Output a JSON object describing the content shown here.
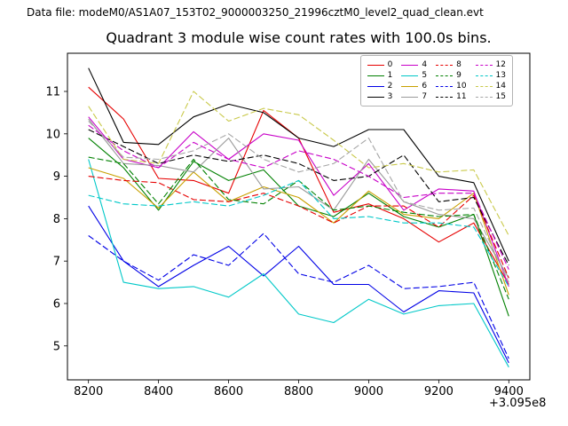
{
  "figure": {
    "data_file_label": "Data file: modeM0/AS1A07_153T02_9000003250_21996cztM0_level2_quad_clean.evt",
    "title": "Quadrant 3 module wise count rates with 100.0s bins."
  },
  "chart_data": {
    "type": "line",
    "title": "Quadrant 3 module wise count rates with 100.0s bins.",
    "xlabel": "",
    "ylabel": "",
    "x_offset_label": "+3.095e8",
    "grid": false,
    "legend_position": "upper right",
    "xlim": [
      8140,
      9460
    ],
    "ylim": [
      4.2,
      11.9
    ],
    "x_ticks": [
      8200,
      8400,
      8600,
      8800,
      9000,
      9200,
      9400
    ],
    "y_ticks": [
      5,
      6,
      7,
      8,
      9,
      10,
      11
    ],
    "x": [
      8200,
      8300,
      8400,
      8500,
      8600,
      8700,
      8800,
      8900,
      9000,
      9100,
      9200,
      9300,
      9400
    ],
    "series": [
      {
        "name": "0",
        "color": "#e60000",
        "dash": "solid",
        "values": [
          11.1,
          10.35,
          8.95,
          8.9,
          8.6,
          10.55,
          9.9,
          8.15,
          8.35,
          8.0,
          7.45,
          7.9,
          6.45
        ]
      },
      {
        "name": "1",
        "color": "#008000",
        "dash": "solid",
        "values": [
          9.9,
          9.2,
          8.2,
          9.35,
          8.9,
          9.15,
          8.3,
          8.05,
          8.6,
          8.05,
          7.8,
          8.1,
          5.7
        ]
      },
      {
        "name": "2",
        "color": "#0000e6",
        "dash": "solid",
        "values": [
          8.3,
          7.0,
          6.4,
          6.9,
          7.35,
          6.65,
          7.35,
          6.45,
          6.45,
          5.8,
          6.3,
          6.25,
          4.6
        ]
      },
      {
        "name": "3",
        "color": "#000000",
        "dash": "solid",
        "values": [
          11.55,
          9.8,
          9.75,
          10.4,
          10.7,
          10.5,
          9.9,
          9.7,
          10.1,
          10.1,
          9.0,
          8.85,
          7.0
        ]
      },
      {
        "name": "4",
        "color": "#c800c8",
        "dash": "solid",
        "values": [
          10.4,
          9.4,
          9.2,
          10.05,
          9.4,
          10.0,
          9.85,
          8.55,
          9.3,
          8.2,
          8.7,
          8.65,
          6.4
        ]
      },
      {
        "name": "5",
        "color": "#00c8c8",
        "dash": "solid",
        "values": [
          9.4,
          6.5,
          6.35,
          6.4,
          6.15,
          6.7,
          5.75,
          5.55,
          6.1,
          5.75,
          5.95,
          6.0,
          4.5
        ]
      },
      {
        "name": "6",
        "color": "#c8a000",
        "dash": "solid",
        "values": [
          9.2,
          8.95,
          8.25,
          9.1,
          8.4,
          8.75,
          8.5,
          7.9,
          8.65,
          8.1,
          8.0,
          8.6,
          6.2
        ]
      },
      {
        "name": "7",
        "color": "#999999",
        "dash": "solid",
        "values": [
          10.35,
          9.3,
          9.25,
          9.1,
          9.9,
          8.7,
          8.75,
          8.2,
          9.4,
          8.4,
          8.1,
          8.0,
          6.6
        ]
      },
      {
        "name": "8",
        "color": "#e60000",
        "dash": "dashed",
        "values": [
          9.0,
          8.9,
          8.85,
          8.45,
          8.4,
          8.6,
          8.3,
          7.9,
          8.3,
          8.3,
          7.8,
          8.55,
          6.6
        ]
      },
      {
        "name": "9",
        "color": "#008000",
        "dash": "dashed",
        "values": [
          9.45,
          9.3,
          8.35,
          9.4,
          8.45,
          8.35,
          8.9,
          8.2,
          8.3,
          8.15,
          8.05,
          8.1,
          6.1
        ]
      },
      {
        "name": "10",
        "color": "#0000e6",
        "dash": "dashed",
        "values": [
          7.6,
          7.0,
          6.55,
          7.15,
          6.9,
          7.65,
          6.7,
          6.5,
          6.9,
          6.35,
          6.4,
          6.5,
          4.7
        ]
      },
      {
        "name": "11",
        "color": "#000000",
        "dash": "dashed",
        "values": [
          10.1,
          9.7,
          9.3,
          9.5,
          9.35,
          9.5,
          9.3,
          8.9,
          9.0,
          9.5,
          8.4,
          8.5,
          6.9
        ]
      },
      {
        "name": "12",
        "color": "#c800c8",
        "dash": "dashed",
        "values": [
          10.2,
          9.6,
          9.2,
          9.8,
          9.4,
          9.2,
          9.6,
          9.4,
          9.0,
          8.5,
          8.6,
          8.6,
          6.8
        ]
      },
      {
        "name": "13",
        "color": "#00c8c8",
        "dash": "dashed",
        "values": [
          8.55,
          8.35,
          8.3,
          8.4,
          8.3,
          8.55,
          8.9,
          8.0,
          8.05,
          7.9,
          7.9,
          7.8,
          6.4
        ]
      },
      {
        "name": "14",
        "color": "#c9c94a",
        "dash": "dashed",
        "values": [
          10.65,
          9.4,
          9.3,
          11.0,
          10.3,
          10.6,
          10.45,
          9.85,
          9.2,
          9.3,
          9.1,
          9.15,
          7.6
        ]
      },
      {
        "name": "15",
        "color": "#a6a6a6",
        "dash": "dashed",
        "values": [
          10.3,
          9.45,
          9.4,
          9.6,
          10.0,
          9.4,
          9.1,
          9.3,
          9.9,
          8.4,
          8.2,
          8.25,
          6.5
        ]
      }
    ]
  }
}
